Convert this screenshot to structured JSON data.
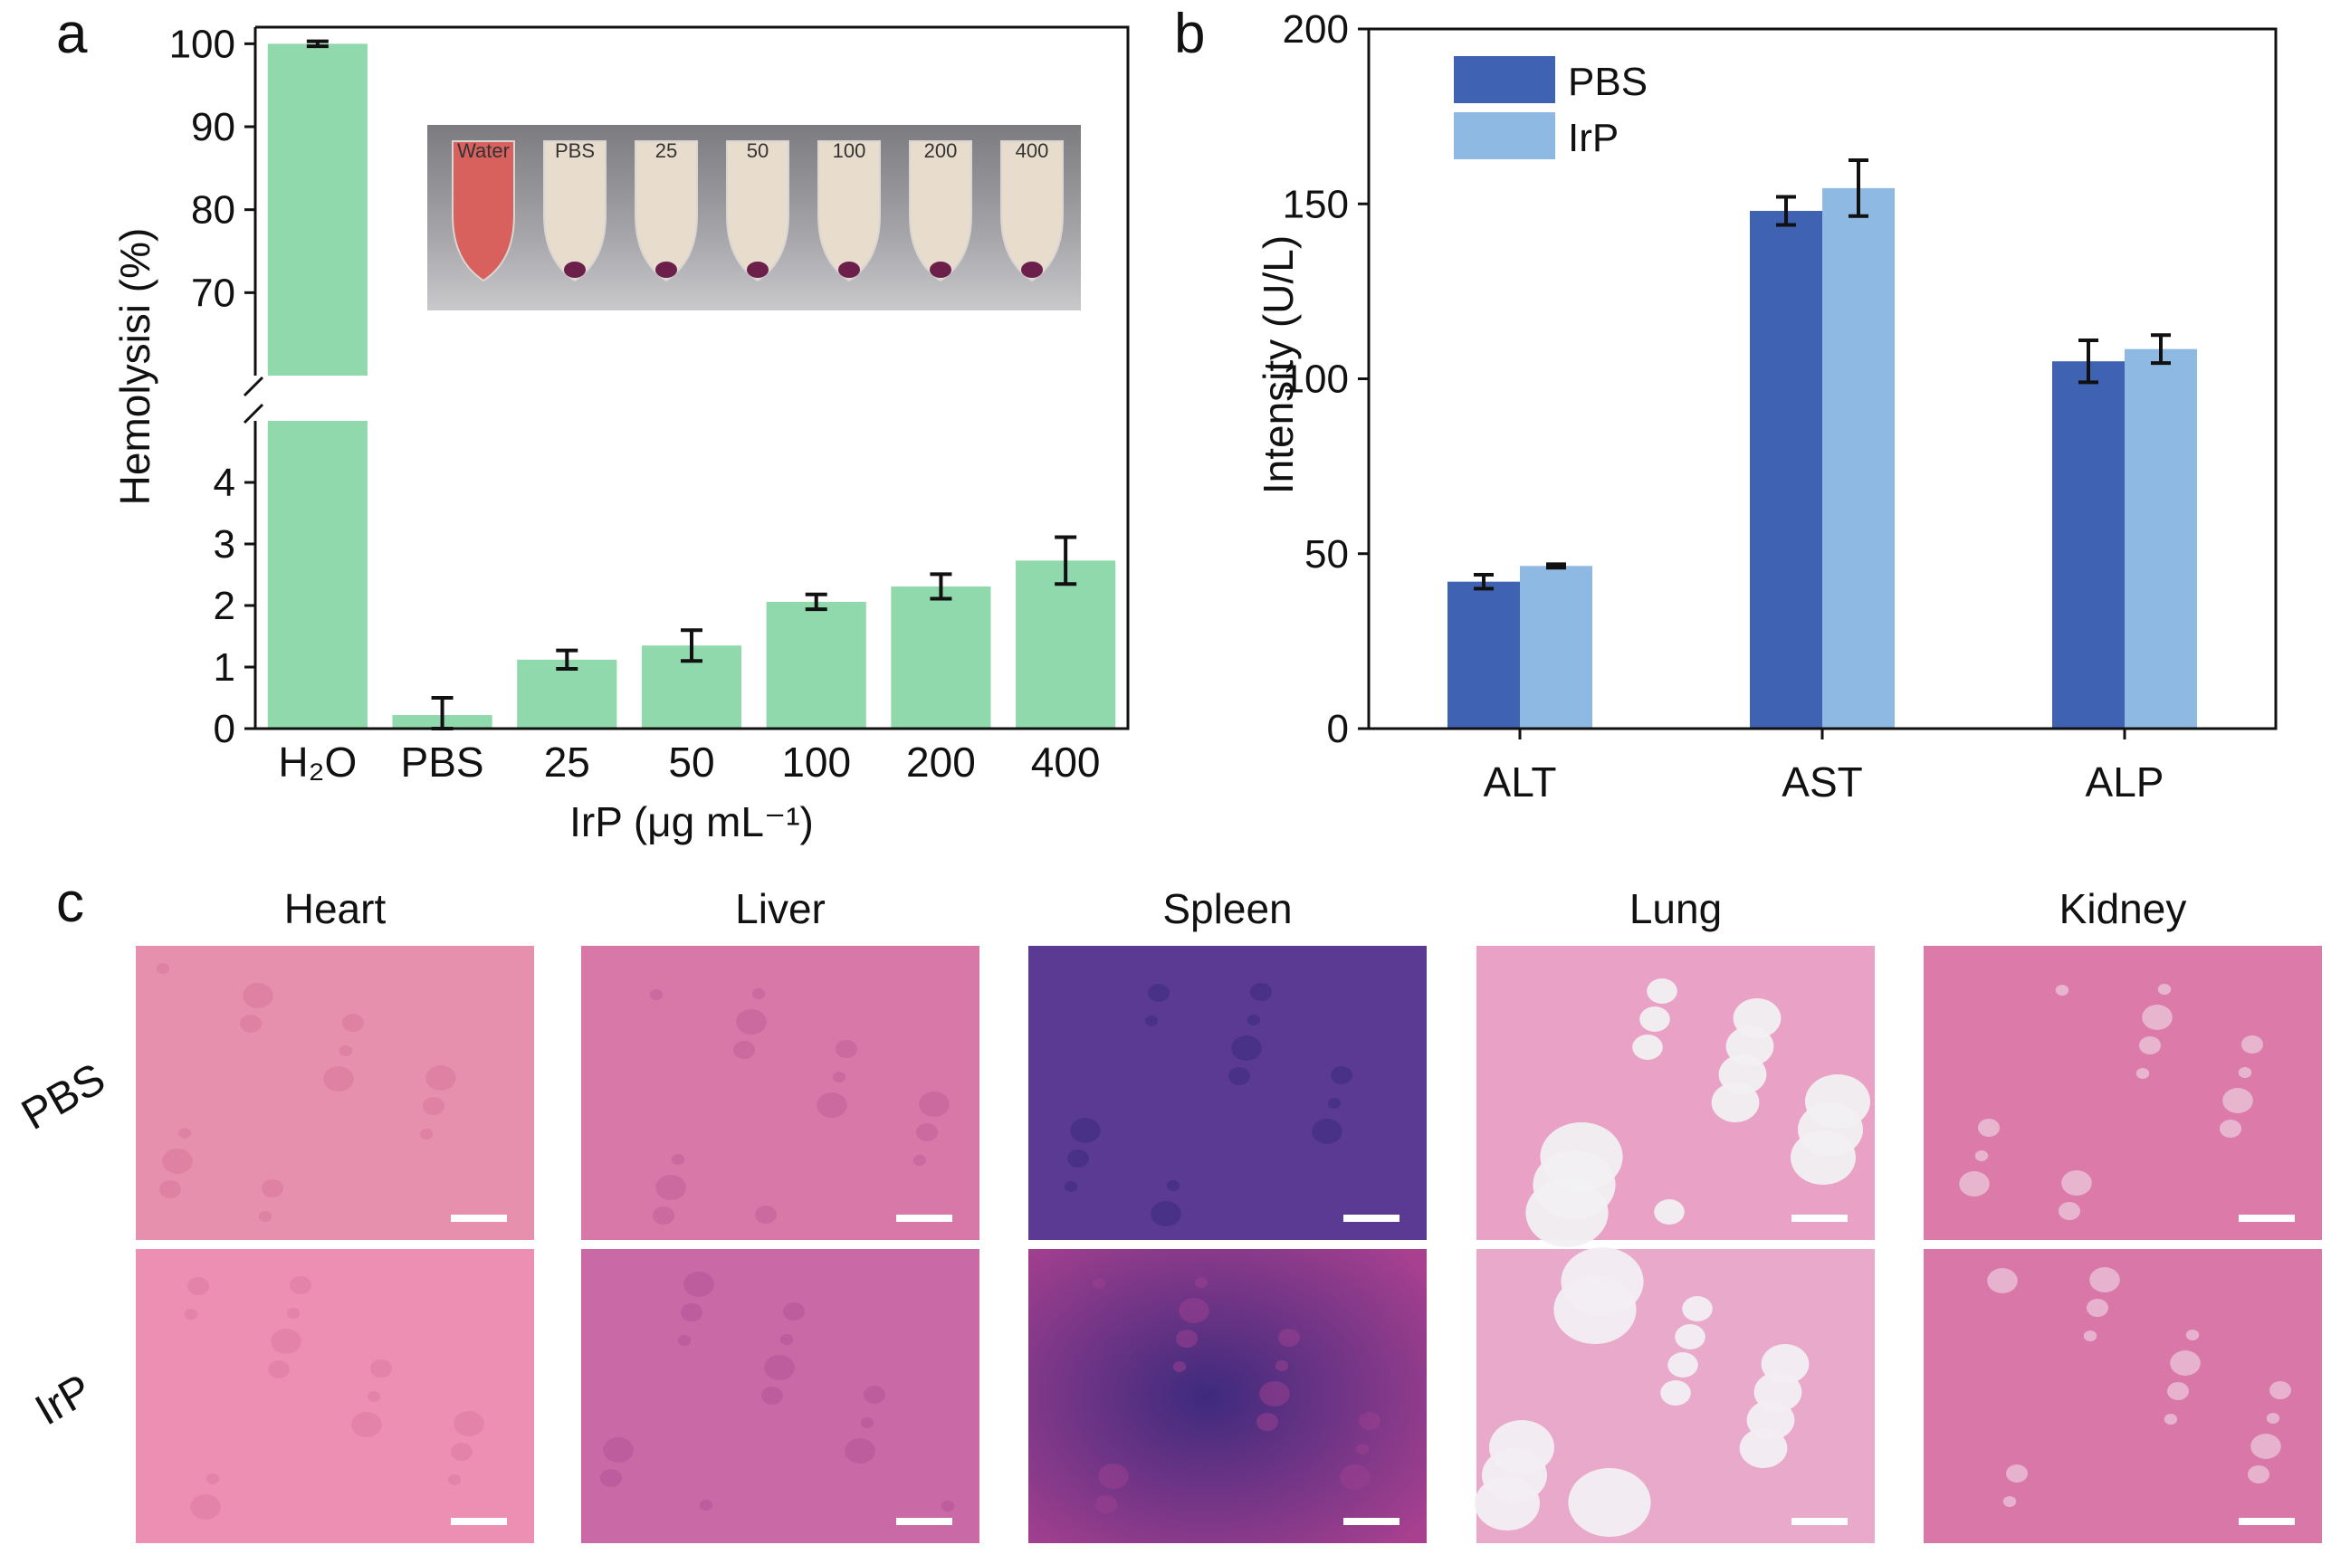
{
  "panel_labels": {
    "a": "a",
    "b": "b",
    "c": "c"
  },
  "chart_data": [
    {
      "type": "bar",
      "panel": "a",
      "title": "",
      "xlabel": "IrP (μg mL⁻¹)",
      "ylabel": "Hemolysisi (%)",
      "categories": [
        "H₂O",
        "PBS",
        "25",
        "50",
        "100",
        "200",
        "400"
      ],
      "values": [
        100,
        0.22,
        1.12,
        1.35,
        2.06,
        2.31,
        2.73
      ],
      "errors": [
        0.3,
        0.28,
        0.15,
        0.25,
        0.12,
        0.2,
        0.38
      ],
      "y_axis_break": {
        "lower_range": [
          0,
          5
        ],
        "upper_range": [
          60,
          102
        ]
      },
      "lower_yticks": [
        0,
        1,
        2,
        3,
        4
      ],
      "upper_yticks": [
        70,
        80,
        90,
        100
      ],
      "bar_color": "#8fd9ac",
      "inset": {
        "description_labels": [
          "Water",
          "PBS",
          "25",
          "50",
          "100",
          "200",
          "400"
        ]
      }
    },
    {
      "type": "bar",
      "panel": "b",
      "title": "",
      "xlabel": "",
      "ylabel": "Intensity (U/L)",
      "categories": [
        "ALT",
        "AST",
        "ALP"
      ],
      "series": [
        {
          "name": "PBS",
          "color": "#3f63b2",
          "values": [
            42,
            148,
            105
          ],
          "errors": [
            2,
            4,
            6
          ]
        },
        {
          "name": "IrP",
          "color": "#8db9e3",
          "values": [
            46.5,
            154.5,
            108.5
          ],
          "errors": [
            0.5,
            8,
            4
          ]
        }
      ],
      "ylim": [
        0,
        200
      ],
      "yticks": [
        0,
        50,
        100,
        150,
        200
      ],
      "legend_position": "top-left"
    }
  ],
  "histology": {
    "organs": [
      "Heart",
      "Liver",
      "Spleen",
      "Lung",
      "Kidney"
    ],
    "groups": [
      "PBS",
      "IrP"
    ],
    "tile_colors": {
      "Heart": [
        "#e690ae",
        "#ec8fb3"
      ],
      "Liver": [
        "#d778a8",
        "#c96aa6"
      ],
      "Spleen": [
        "#5a3a93",
        "#6e3d95"
      ],
      "Lung": [
        "#e9a2c5",
        "#e8a9cb"
      ],
      "Kidney": [
        "#dc7ba9",
        "#d877a8"
      ]
    },
    "tile_shade_colors": {
      "Heart": [
        "#d8759a",
        "#df7aa2"
      ],
      "Liver": [
        "#bf5e98",
        "#b25296"
      ],
      "Spleen": [
        "#3d2a7d",
        "#9a3f8f"
      ],
      "Lung": [
        "#f1f0f2",
        "#f2eef2"
      ],
      "Kidney": [
        "#f3e6ee",
        "#f2e3ec"
      ]
    }
  }
}
